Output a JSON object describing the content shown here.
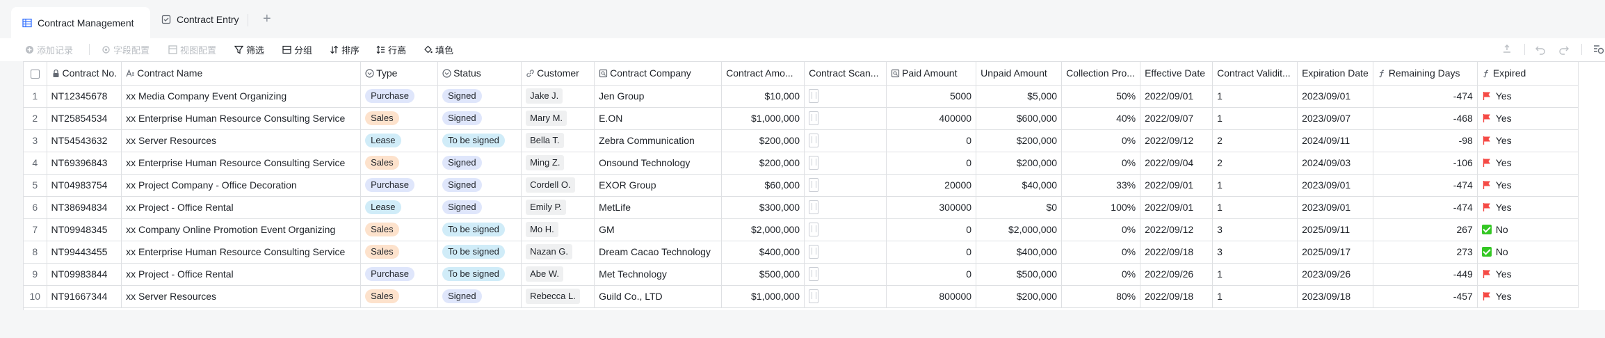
{
  "tabs": [
    {
      "label": "Contract Management",
      "icon": "table-icon",
      "active": true
    },
    {
      "label": "Contract Entry",
      "icon": "form-icon",
      "active": false
    }
  ],
  "toolbar": {
    "add_record": "添加记录",
    "field_config": "字段配置",
    "view_config": "视图配置",
    "filter": "筛选",
    "group": "分组",
    "sort": "排序",
    "row_height": "行高",
    "fill_color": "填色"
  },
  "columns": [
    {
      "key": "contract_no",
      "label": "Contract No.",
      "icon": "lock-icon"
    },
    {
      "key": "contract_name",
      "label": "Contract Name",
      "icon": "text-field-icon"
    },
    {
      "key": "type",
      "label": "Type",
      "icon": "single-select-icon"
    },
    {
      "key": "status",
      "label": "Status",
      "icon": "single-select-icon"
    },
    {
      "key": "customer",
      "label": "Customer",
      "icon": "link-icon"
    },
    {
      "key": "company",
      "label": "Contract Company",
      "icon": "lookup-icon"
    },
    {
      "key": "amount",
      "label": "Contract Amo..."
    },
    {
      "key": "scan",
      "label": "Contract Scan..."
    },
    {
      "key": "paid",
      "label": "Paid Amount",
      "icon": "lookup-icon"
    },
    {
      "key": "unpaid",
      "label": "Unpaid Amount"
    },
    {
      "key": "progress",
      "label": "Collection Pro..."
    },
    {
      "key": "effective",
      "label": "Effective Date"
    },
    {
      "key": "validity",
      "label": "Contract Validit..."
    },
    {
      "key": "expiration",
      "label": "Expiration Date"
    },
    {
      "key": "remaining",
      "label": "Remaining Days",
      "icon": "formula-icon"
    },
    {
      "key": "expired",
      "label": "Expired",
      "icon": "formula-icon"
    }
  ],
  "pill_colors": {
    "Purchase": {
      "bg": "#dfe6fb",
      "fg": "#1f2329"
    },
    "Sales": {
      "bg": "#fde2cc",
      "fg": "#1f2329"
    },
    "Lease": {
      "bg": "#d0ecf8",
      "fg": "#1f2329"
    },
    "Signed": {
      "bg": "#dfe6fb",
      "fg": "#1f2329"
    },
    "To be signed": {
      "bg": "#d0ecf8",
      "fg": "#1f2329"
    }
  },
  "rows": [
    {
      "idx": "1",
      "contract_no": "NT12345678",
      "contract_name": "xx Media Company Event Organizing",
      "type": "Purchase",
      "status": "Signed",
      "customer": "Jake J.",
      "company": "Jen Group",
      "amount": "$10,000",
      "paid": "5000",
      "unpaid": "$5,000",
      "progress": "50%",
      "effective": "2022/09/01",
      "validity": "1",
      "expiration": "2023/09/01",
      "remaining": "-474",
      "expired": "Yes"
    },
    {
      "idx": "2",
      "contract_no": "NT25854534",
      "contract_name": "xx Enterprise Human Resource Consulting Service",
      "type": "Sales",
      "status": "Signed",
      "customer": "Mary M.",
      "company": "E.ON",
      "amount": "$1,000,000",
      "paid": "400000",
      "unpaid": "$600,000",
      "progress": "40%",
      "effective": "2022/09/07",
      "validity": "1",
      "expiration": "2023/09/07",
      "remaining": "-468",
      "expired": "Yes"
    },
    {
      "idx": "3",
      "contract_no": "NT54543632",
      "contract_name": "xx Server Resources",
      "type": "Lease",
      "status": "To be signed",
      "customer": "Bella T.",
      "company": "Zebra Communication",
      "amount": "$200,000",
      "paid": "0",
      "unpaid": "$200,000",
      "progress": "0%",
      "effective": "2022/09/12",
      "validity": "2",
      "expiration": "2024/09/11",
      "remaining": "-98",
      "expired": "Yes"
    },
    {
      "idx": "4",
      "contract_no": "NT69396843",
      "contract_name": "xx Enterprise Human Resource Consulting Service",
      "type": "Sales",
      "status": "Signed",
      "customer": "Ming Z.",
      "company": "Onsound Technology",
      "amount": "$200,000",
      "paid": "0",
      "unpaid": "$200,000",
      "progress": "0%",
      "effective": "2022/09/04",
      "validity": "2",
      "expiration": "2024/09/03",
      "remaining": "-106",
      "expired": "Yes"
    },
    {
      "idx": "5",
      "contract_no": "NT04983754",
      "contract_name": "xx Project Company - Office Decoration",
      "type": "Purchase",
      "status": "Signed",
      "customer": "Cordell O.",
      "company": "EXOR Group",
      "amount": "$60,000",
      "paid": "20000",
      "unpaid": "$40,000",
      "progress": "33%",
      "effective": "2022/09/01",
      "validity": "1",
      "expiration": "2023/09/01",
      "remaining": "-474",
      "expired": "Yes"
    },
    {
      "idx": "6",
      "contract_no": "NT38694834",
      "contract_name": "xx Project - Office Rental",
      "type": "Lease",
      "status": "Signed",
      "customer": "Emily P.",
      "company": "MetLife",
      "amount": "$300,000",
      "paid": "300000",
      "unpaid": "$0",
      "progress": "100%",
      "effective": "2022/09/01",
      "validity": "1",
      "expiration": "2023/09/01",
      "remaining": "-474",
      "expired": "Yes"
    },
    {
      "idx": "7",
      "contract_no": "NT09948345",
      "contract_name": "xx Company Online Promotion Event Organizing",
      "type": "Sales",
      "status": "To be signed",
      "customer": "Mo H.",
      "company": "GM",
      "amount": "$2,000,000",
      "paid": "0",
      "unpaid": "$2,000,000",
      "progress": "0%",
      "effective": "2022/09/12",
      "validity": "3",
      "expiration": "2025/09/11",
      "remaining": "267",
      "expired": "No"
    },
    {
      "idx": "8",
      "contract_no": "NT99443455",
      "contract_name": "xx Enterprise Human Resource Consulting Service",
      "type": "Sales",
      "status": "To be signed",
      "customer": "Nazan G.",
      "company": "Dream Cacao Technology",
      "amount": "$400,000",
      "paid": "0",
      "unpaid": "$400,000",
      "progress": "0%",
      "effective": "2022/09/18",
      "validity": "3",
      "expiration": "2025/09/17",
      "remaining": "273",
      "expired": "No"
    },
    {
      "idx": "9",
      "contract_no": "NT09983844",
      "contract_name": "xx Project - Office Rental",
      "type": "Purchase",
      "status": "To be signed",
      "customer": "Abe W.",
      "company": "Met Technology",
      "amount": "$500,000",
      "paid": "0",
      "unpaid": "$500,000",
      "progress": "0%",
      "effective": "2022/09/26",
      "validity": "1",
      "expiration": "2023/09/26",
      "remaining": "-449",
      "expired": "Yes"
    },
    {
      "idx": "10",
      "contract_no": "NT91667344",
      "contract_name": "xx Server Resources",
      "type": "Sales",
      "status": "Signed",
      "customer": "Rebecca L.",
      "company": "Guild Co., LTD",
      "amount": "$1,000,000",
      "paid": "800000",
      "unpaid": "$200,000",
      "progress": "80%",
      "effective": "2022/09/18",
      "validity": "1",
      "expiration": "2023/09/18",
      "remaining": "-457",
      "expired": "Yes"
    }
  ],
  "colors": {
    "accent": "#3370ff",
    "flag": "#f54a45",
    "check": "#34c724"
  }
}
